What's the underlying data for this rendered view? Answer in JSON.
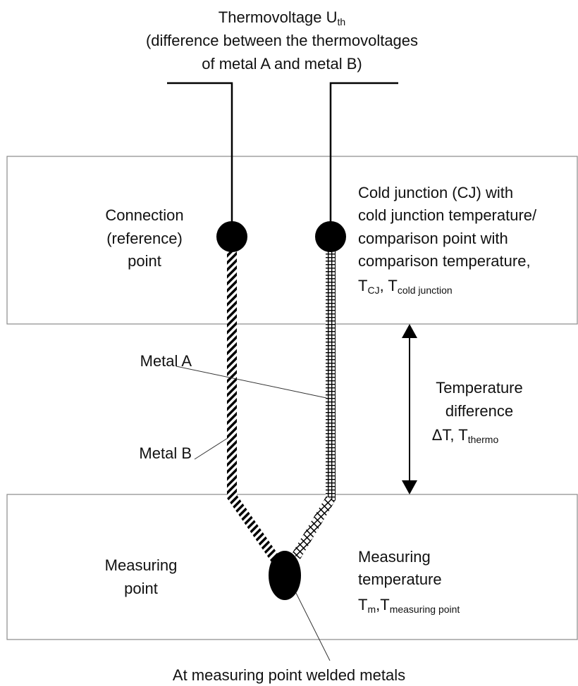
{
  "title": {
    "main": "Thermovoltage U",
    "sub": "th",
    "line2": "(difference between the thermovoltages",
    "line3": "of metal A and metal B)"
  },
  "connection_point": [
    "Connection",
    "(reference)",
    "point"
  ],
  "cold_junction": {
    "lines": [
      "Cold junction (CJ) with",
      "cold junction temperature/",
      "comparison point with",
      "comparison temperature,"
    ],
    "symbols": [
      {
        "text": "T",
        "sub": "CJ"
      },
      {
        "text": ", T",
        "sub": "cold junction"
      }
    ]
  },
  "metal_a": "Metal A",
  "metal_b": "Metal B",
  "temperature_difference": {
    "lines": [
      "Temperature",
      "difference"
    ],
    "symbol": {
      "text": "ΔT, T",
      "sub": "thermo"
    }
  },
  "measuring_point": [
    "Measuring",
    "point"
  ],
  "measuring_temperature": {
    "lines": [
      "Measuring",
      "temperature"
    ],
    "symbols": [
      {
        "text": "T",
        "sub": "m"
      },
      {
        "text": ",T",
        "sub": "measuring point"
      }
    ]
  },
  "welded": "At measuring point welded metals"
}
